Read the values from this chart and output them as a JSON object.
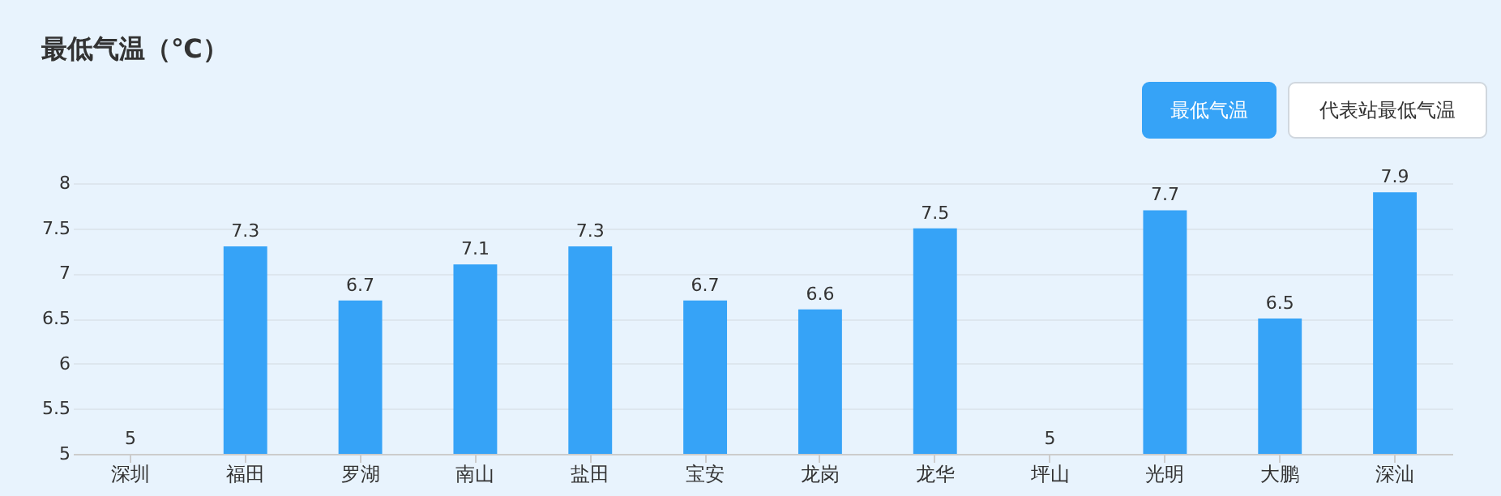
{
  "chart_data": {
    "type": "bar",
    "title": "最低气温（℃）",
    "categories": [
      "深圳",
      "福田",
      "罗湖",
      "南山",
      "盐田",
      "宝安",
      "龙岗",
      "龙华",
      "坪山",
      "光明",
      "大鹏",
      "深汕"
    ],
    "values": [
      5,
      7.3,
      6.7,
      7.1,
      7.3,
      6.7,
      6.6,
      7.5,
      5,
      7.7,
      6.5,
      7.9
    ],
    "color": "#36a3f7",
    "ylim": [
      5,
      8
    ],
    "yticks": [
      5,
      5.5,
      6,
      6.5,
      7,
      7.5,
      8
    ],
    "grid": "y",
    "data_labels": true,
    "annotations": [
      "最低气温",
      "代表站最低气温"
    ]
  }
}
